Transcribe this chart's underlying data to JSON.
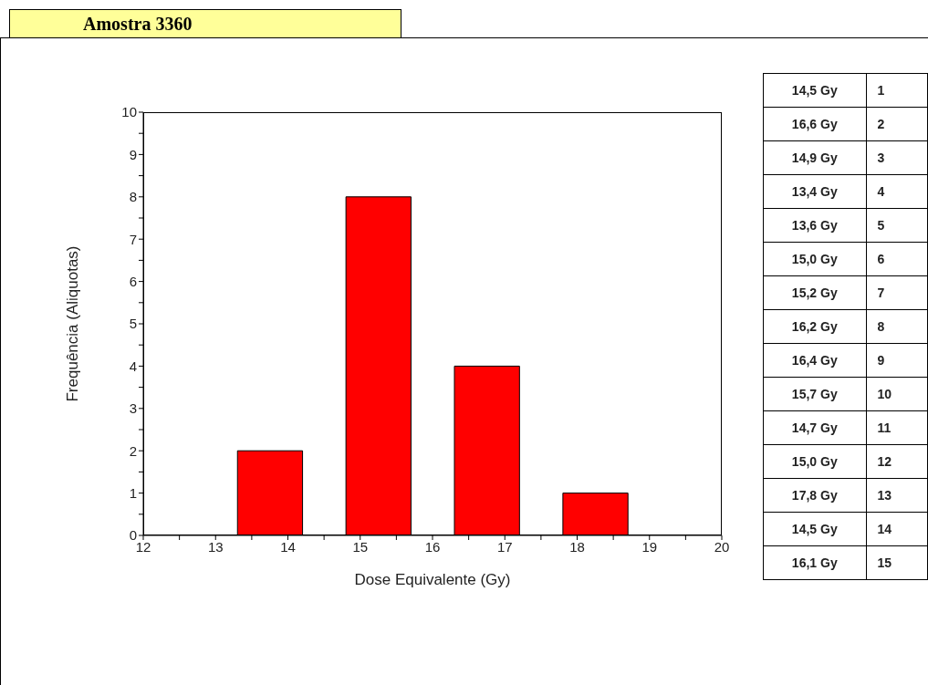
{
  "chart_data": {
    "type": "bar",
    "title": "Amostra 3360",
    "xlabel": "Dose Equivalente (Gy)",
    "ylabel": "Frequência (Aliquotas)",
    "x": [
      13.75,
      15.25,
      16.75,
      18.25
    ],
    "values": [
      2,
      8,
      4,
      1
    ],
    "color": "#ff0000",
    "xlim": [
      12,
      20
    ],
    "xticks": [
      12,
      {
        "value": 12.5,
        "label": null
      },
      13,
      {
        "value": 13.5,
        "label": null
      },
      14,
      {
        "value": 14.5,
        "label": null
      },
      15,
      {
        "value": 15.5,
        "label": null
      },
      16,
      {
        "value": 16.5,
        "label": null
      },
      17,
      {
        "value": 17.5,
        "label": null
      },
      18,
      {
        "value": 18.5,
        "label": null
      },
      19,
      {
        "value": 19.5,
        "label": null
      },
      20
    ],
    "ylim": [
      0,
      10
    ],
    "yticks": [
      0,
      {
        "value": 0.5,
        "label": null
      },
      1,
      {
        "value": 1.5,
        "label": null
      },
      2,
      {
        "value": 2.5,
        "label": null
      },
      3,
      {
        "value": 3.5,
        "label": null
      },
      4,
      {
        "value": 4.5,
        "label": null
      },
      5,
      {
        "value": 5.5,
        "label": null
      },
      6,
      {
        "value": 6.5,
        "label": null
      },
      7,
      {
        "value": 7.5,
        "label": null
      },
      8,
      {
        "value": 8.5,
        "label": null
      },
      9,
      {
        "value": 9.5,
        "label": null
      },
      10
    ],
    "grid": false,
    "legend": false,
    "annotations": [
      "14,5 Gy",
      "1",
      "16,6 Gy",
      "2",
      "14,9 Gy",
      "3",
      "13,4 Gy",
      "4",
      "13,6 Gy",
      "5",
      "15,0 Gy",
      "6",
      "15,2 Gy",
      "7",
      "16,2 Gy",
      "8",
      "16,4 Gy",
      "9",
      "15,7 Gy",
      "10",
      "14,7 Gy",
      "11",
      "15,0 Gy",
      "12",
      "17,8 Gy",
      "13",
      "14,5 Gy",
      "14",
      "16,1 Gy",
      "15"
    ]
  }
}
